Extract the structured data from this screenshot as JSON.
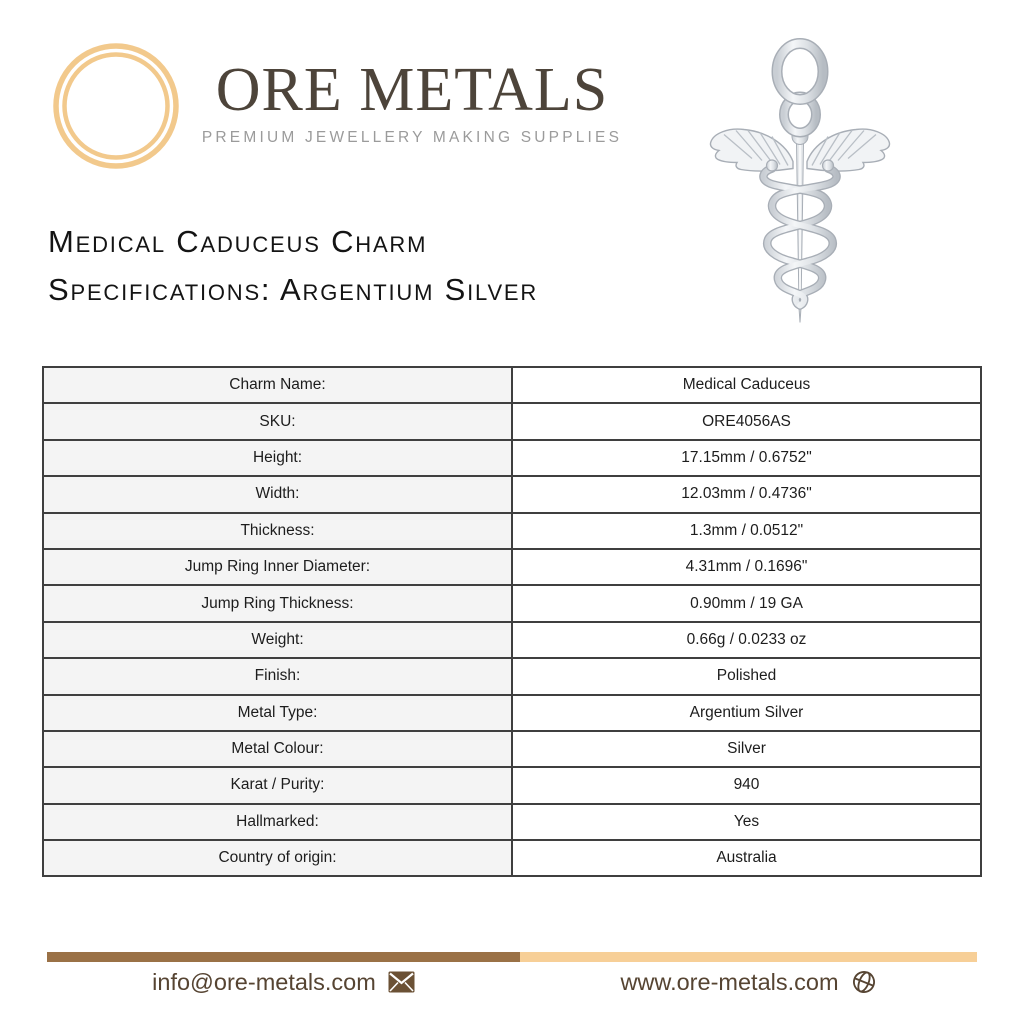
{
  "brand": {
    "name": "ORE METALS",
    "tagline": "PREMIUM JEWELLERY MAKING SUPPLIES",
    "logo_icon": "double-ring-icon"
  },
  "product": {
    "title_line1": "Medical Caduceus Charm",
    "title_line2": "Specifications: Argentium Silver",
    "image_icon": "caduceus-charm-image"
  },
  "specs": {
    "rows": [
      {
        "label": "Charm Name:",
        "value": "Medical Caduceus"
      },
      {
        "label": "SKU:",
        "value": "ORE4056AS"
      },
      {
        "label": "Height:",
        "value": "17.15mm / 0.6752\""
      },
      {
        "label": "Width:",
        "value": "12.03mm / 0.4736\""
      },
      {
        "label": "Thickness:",
        "value": "1.3mm / 0.0512\""
      },
      {
        "label": "Jump Ring Inner Diameter:",
        "value": "4.31mm / 0.1696\""
      },
      {
        "label": "Jump Ring Thickness:",
        "value": "0.90mm / 19 GA"
      },
      {
        "label": "Weight:",
        "value": "0.66g / 0.0233 oz"
      },
      {
        "label": "Finish:",
        "value": "Polished"
      },
      {
        "label": "Metal Type:",
        "value": "Argentium Silver"
      },
      {
        "label": "Metal Colour:",
        "value": "Silver"
      },
      {
        "label": "Karat / Purity:",
        "value": "940"
      },
      {
        "label": "Hallmarked:",
        "value": "Yes"
      },
      {
        "label": "Country of origin:",
        "value": "Australia"
      }
    ]
  },
  "footer": {
    "email": "info@ore-metals.com",
    "email_icon": "envelope-icon",
    "website": "www.ore-metals.com",
    "website_icon": "globe-icon"
  },
  "colors": {
    "accent_gold": "#f2c98c",
    "bar_brown": "#9a7146",
    "bar_peach": "#f7cf97",
    "brand_text": "#4d443a",
    "tagline_gray": "#9b9b9b",
    "title_text": "#141414",
    "table_border": "#3f3f3f",
    "label_bg": "#f4f4f4",
    "footer_text": "#564432"
  }
}
